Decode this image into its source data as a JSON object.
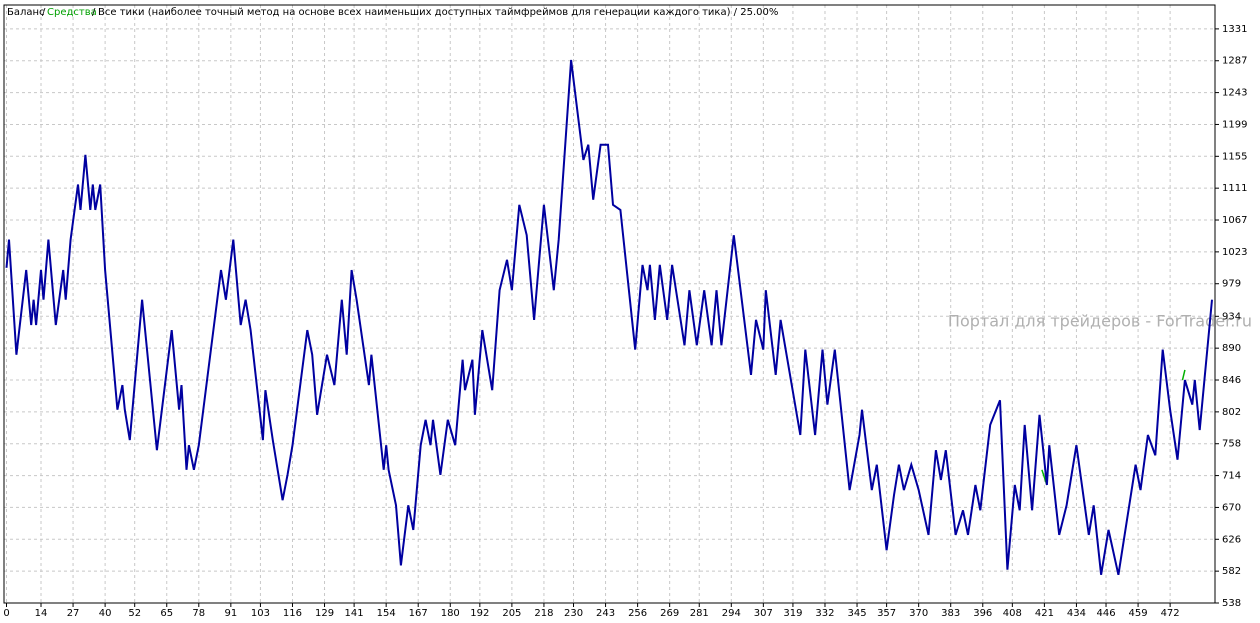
{
  "chart_data": {
    "type": "line",
    "title": "Все тики (наиболее точный метод на основе всех наименьших доступных таймфреймов для генерации каждого тика) / 25.00%",
    "legend_separator": "/",
    "watermark": "Портал для трейдеров - ForTrader.ru",
    "xlim": [
      0,
      490
    ],
    "ylim": [
      538,
      1364
    ],
    "xticks": [
      0,
      14,
      27,
      40,
      52,
      65,
      78,
      91,
      103,
      116,
      129,
      141,
      154,
      167,
      180,
      192,
      205,
      218,
      230,
      243,
      256,
      269,
      281,
      294,
      307,
      319,
      332,
      345,
      357,
      370,
      383,
      396,
      408,
      421,
      434,
      446,
      459,
      472
    ],
    "yticks": [
      538,
      582,
      626,
      670,
      714,
      758,
      802,
      846,
      890,
      934,
      979,
      1023,
      1067,
      1111,
      1155,
      1199,
      1243,
      1287,
      1331
    ],
    "grid": true,
    "series": [
      {
        "name": "Баланс",
        "color": "#0000a0",
        "x": [
          0,
          1,
          4,
          8,
          10,
          11,
          12,
          14,
          15,
          17,
          20,
          23,
          24,
          26,
          29,
          30,
          32,
          34,
          35,
          36,
          38,
          40,
          45,
          47,
          48,
          50,
          55,
          61,
          67,
          70,
          71,
          73,
          74,
          76,
          78,
          87,
          89,
          92,
          95,
          97,
          99,
          104,
          105,
          108,
          112,
          114,
          116,
          122,
          124,
          126,
          130,
          133,
          136,
          138,
          140,
          142,
          147,
          148,
          153,
          154,
          155,
          158,
          160,
          163,
          165,
          168,
          170,
          172,
          173,
          176,
          179,
          182,
          185,
          186,
          189,
          190,
          193,
          197,
          200,
          203,
          205,
          208,
          211,
          214,
          218,
          222,
          224,
          229,
          234,
          236,
          238,
          241,
          244,
          246,
          249,
          255,
          258,
          260,
          261,
          263,
          265,
          268,
          270,
          275,
          277,
          280,
          283,
          286,
          288,
          290,
          295,
          302,
          304,
          307,
          308,
          312,
          314,
          322,
          324,
          328,
          331,
          333,
          336,
          342,
          346,
          347,
          351,
          353,
          357,
          360,
          362,
          364,
          367,
          370,
          374,
          377,
          379,
          381,
          385,
          388,
          390,
          393,
          395,
          399,
          403,
          406,
          409,
          411,
          413,
          416,
          419,
          422,
          423,
          427,
          430,
          434,
          439,
          441,
          444,
          447,
          451,
          458,
          460,
          463,
          466,
          469,
          472,
          475,
          478,
          481,
          482,
          484,
          489
        ],
        "values": [
          1001,
          1040,
          881,
          998,
          922,
          957,
          922,
          998,
          957,
          1040,
          922,
          998,
          957,
          1040,
          1116,
          1081,
          1157,
          1081,
          1116,
          1081,
          1116,
          998,
          805,
          839,
          805,
          763,
          957,
          749,
          915,
          805,
          839,
          722,
          756,
          722,
          756,
          998,
          957,
          1040,
          922,
          957,
          915,
          763,
          832,
          763,
          680,
          715,
          756,
          915,
          881,
          798,
          881,
          839,
          957,
          881,
          998,
          957,
          839,
          881,
          722,
          756,
          722,
          673,
          590,
          673,
          639,
          756,
          791,
          756,
          791,
          715,
          791,
          756,
          874,
          832,
          874,
          798,
          915,
          832,
          970,
          1012,
          970,
          1088,
          1046,
          929,
          1088,
          970,
          1040,
          1288,
          1150,
          1171,
          1095,
          1171,
          1171,
          1088,
          1081,
          888,
          1005,
          970,
          1005,
          929,
          1005,
          929,
          1005,
          894,
          970,
          894,
          970,
          894,
          970,
          894,
          1046,
          853,
          929,
          888,
          970,
          853,
          929,
          770,
          888,
          770,
          888,
          812,
          888,
          694,
          770,
          805,
          694,
          729,
          611,
          687,
          729,
          694,
          729,
          694,
          632,
          749,
          708,
          749,
          632,
          666,
          632,
          701,
          666,
          784,
          818,
          584,
          701,
          666,
          784,
          666,
          798,
          701,
          756,
          632,
          673,
          756,
          632,
          673,
          577,
          639,
          577,
          729,
          694,
          770,
          742,
          888,
          805,
          736,
          846,
          812,
          846,
          777,
          957
        ]
      },
      {
        "name": "Средства",
        "color": "#00b000",
        "x": [
          420,
          422,
          450,
          477,
          478
        ],
        "values": [
          722,
          701,
          null,
          846,
          860
        ]
      }
    ]
  }
}
